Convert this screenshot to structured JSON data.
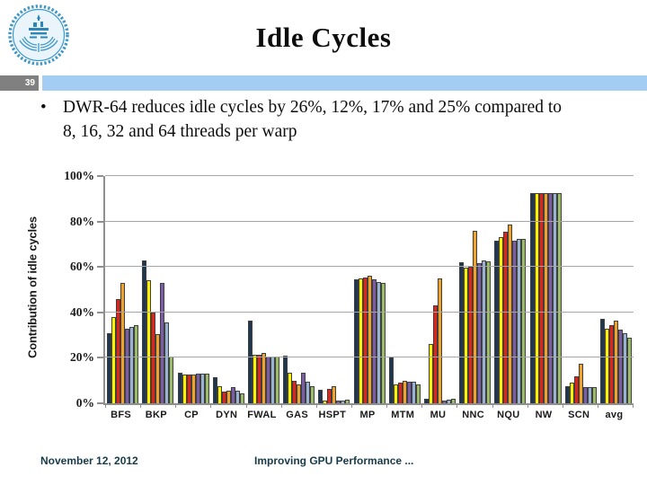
{
  "slide": {
    "title": "Idle Cycles",
    "slide_number": "39",
    "bullet_marker": "•",
    "bullet_text": "DWR-64 reduces idle cycles by 26%, 12%, 17% and 25% compared to 8, 16, 32 and 64 threads per warp",
    "footer_date": "November 12, 2012",
    "footer_title": "Improving GPU Performance ..."
  },
  "logo": {
    "name": "university-seal",
    "color": "#3E97C9"
  },
  "colors": {
    "band_blue": "#A3CDF2",
    "band_gray": "#808080",
    "axis_gray": "#8f8f8f",
    "gridline_gray": "#a6a6a6",
    "footer_text": "#173B4A"
  },
  "chart_data": {
    "type": "bar",
    "title": "",
    "xlabel": "",
    "ylabel": "Contribution of idle cycles",
    "ylim": [
      0,
      100
    ],
    "grid": true,
    "legend_position": "none",
    "yticks": [
      0,
      20,
      40,
      60,
      80,
      100
    ],
    "ytick_labels": [
      "0%",
      "20%",
      "40%",
      "60%",
      "80%",
      "100%"
    ],
    "categories": [
      "BFS",
      "BKP",
      "CP",
      "DYN",
      "FWAL",
      "GAS",
      "HSPT",
      "MP",
      "MTM",
      "MU",
      "NNC",
      "NQU",
      "NW",
      "SCN",
      "avg"
    ],
    "series": [
      {
        "name": "series-1-dark-navy",
        "color": "#1F3651",
        "values": [
          31,
          63,
          13.5,
          11.5,
          36.5,
          21,
          6,
          54.5,
          20,
          2,
          62,
          71.5,
          92.5,
          7.5,
          37
        ]
      },
      {
        "name": "series-2-yellow",
        "color": "#FFF200",
        "values": [
          38,
          54,
          12.5,
          7.5,
          21.5,
          13.5,
          1,
          55,
          8.5,
          26,
          59.5,
          73,
          92.5,
          9,
          33
        ]
      },
      {
        "name": "series-3-red",
        "color": "#E2231A",
        "values": [
          46,
          40,
          12.5,
          5,
          21.5,
          10,
          6.5,
          55.5,
          9,
          43,
          60,
          75.5,
          92.5,
          12,
          34.5
        ]
      },
      {
        "name": "series-4-orange",
        "color": "#EFA32B",
        "values": [
          53,
          30.5,
          12.5,
          5.5,
          22,
          8.5,
          7.5,
          56,
          10,
          55,
          76,
          78.5,
          92.5,
          17.5,
          36.5
        ]
      },
      {
        "name": "series-5-purple",
        "color": "#7A5DA5",
        "values": [
          33,
          53,
          13,
          7,
          20.5,
          13.5,
          1,
          54.5,
          9.5,
          1,
          61.5,
          71.5,
          92.5,
          7,
          32.5
        ]
      },
      {
        "name": "series-6-light-blue",
        "color": "#99B3D4",
        "values": [
          33.5,
          35.5,
          13,
          5.5,
          20.5,
          9.5,
          1,
          53.5,
          9.5,
          1.5,
          63,
          72.5,
          92.5,
          7,
          31
        ]
      },
      {
        "name": "series-7-green",
        "color": "#9BBB67",
        "values": [
          34.5,
          20.5,
          13,
          4.5,
          20.5,
          7.5,
          1.5,
          53,
          8.5,
          2,
          62.5,
          72.5,
          92.5,
          7,
          29
        ]
      }
    ]
  }
}
